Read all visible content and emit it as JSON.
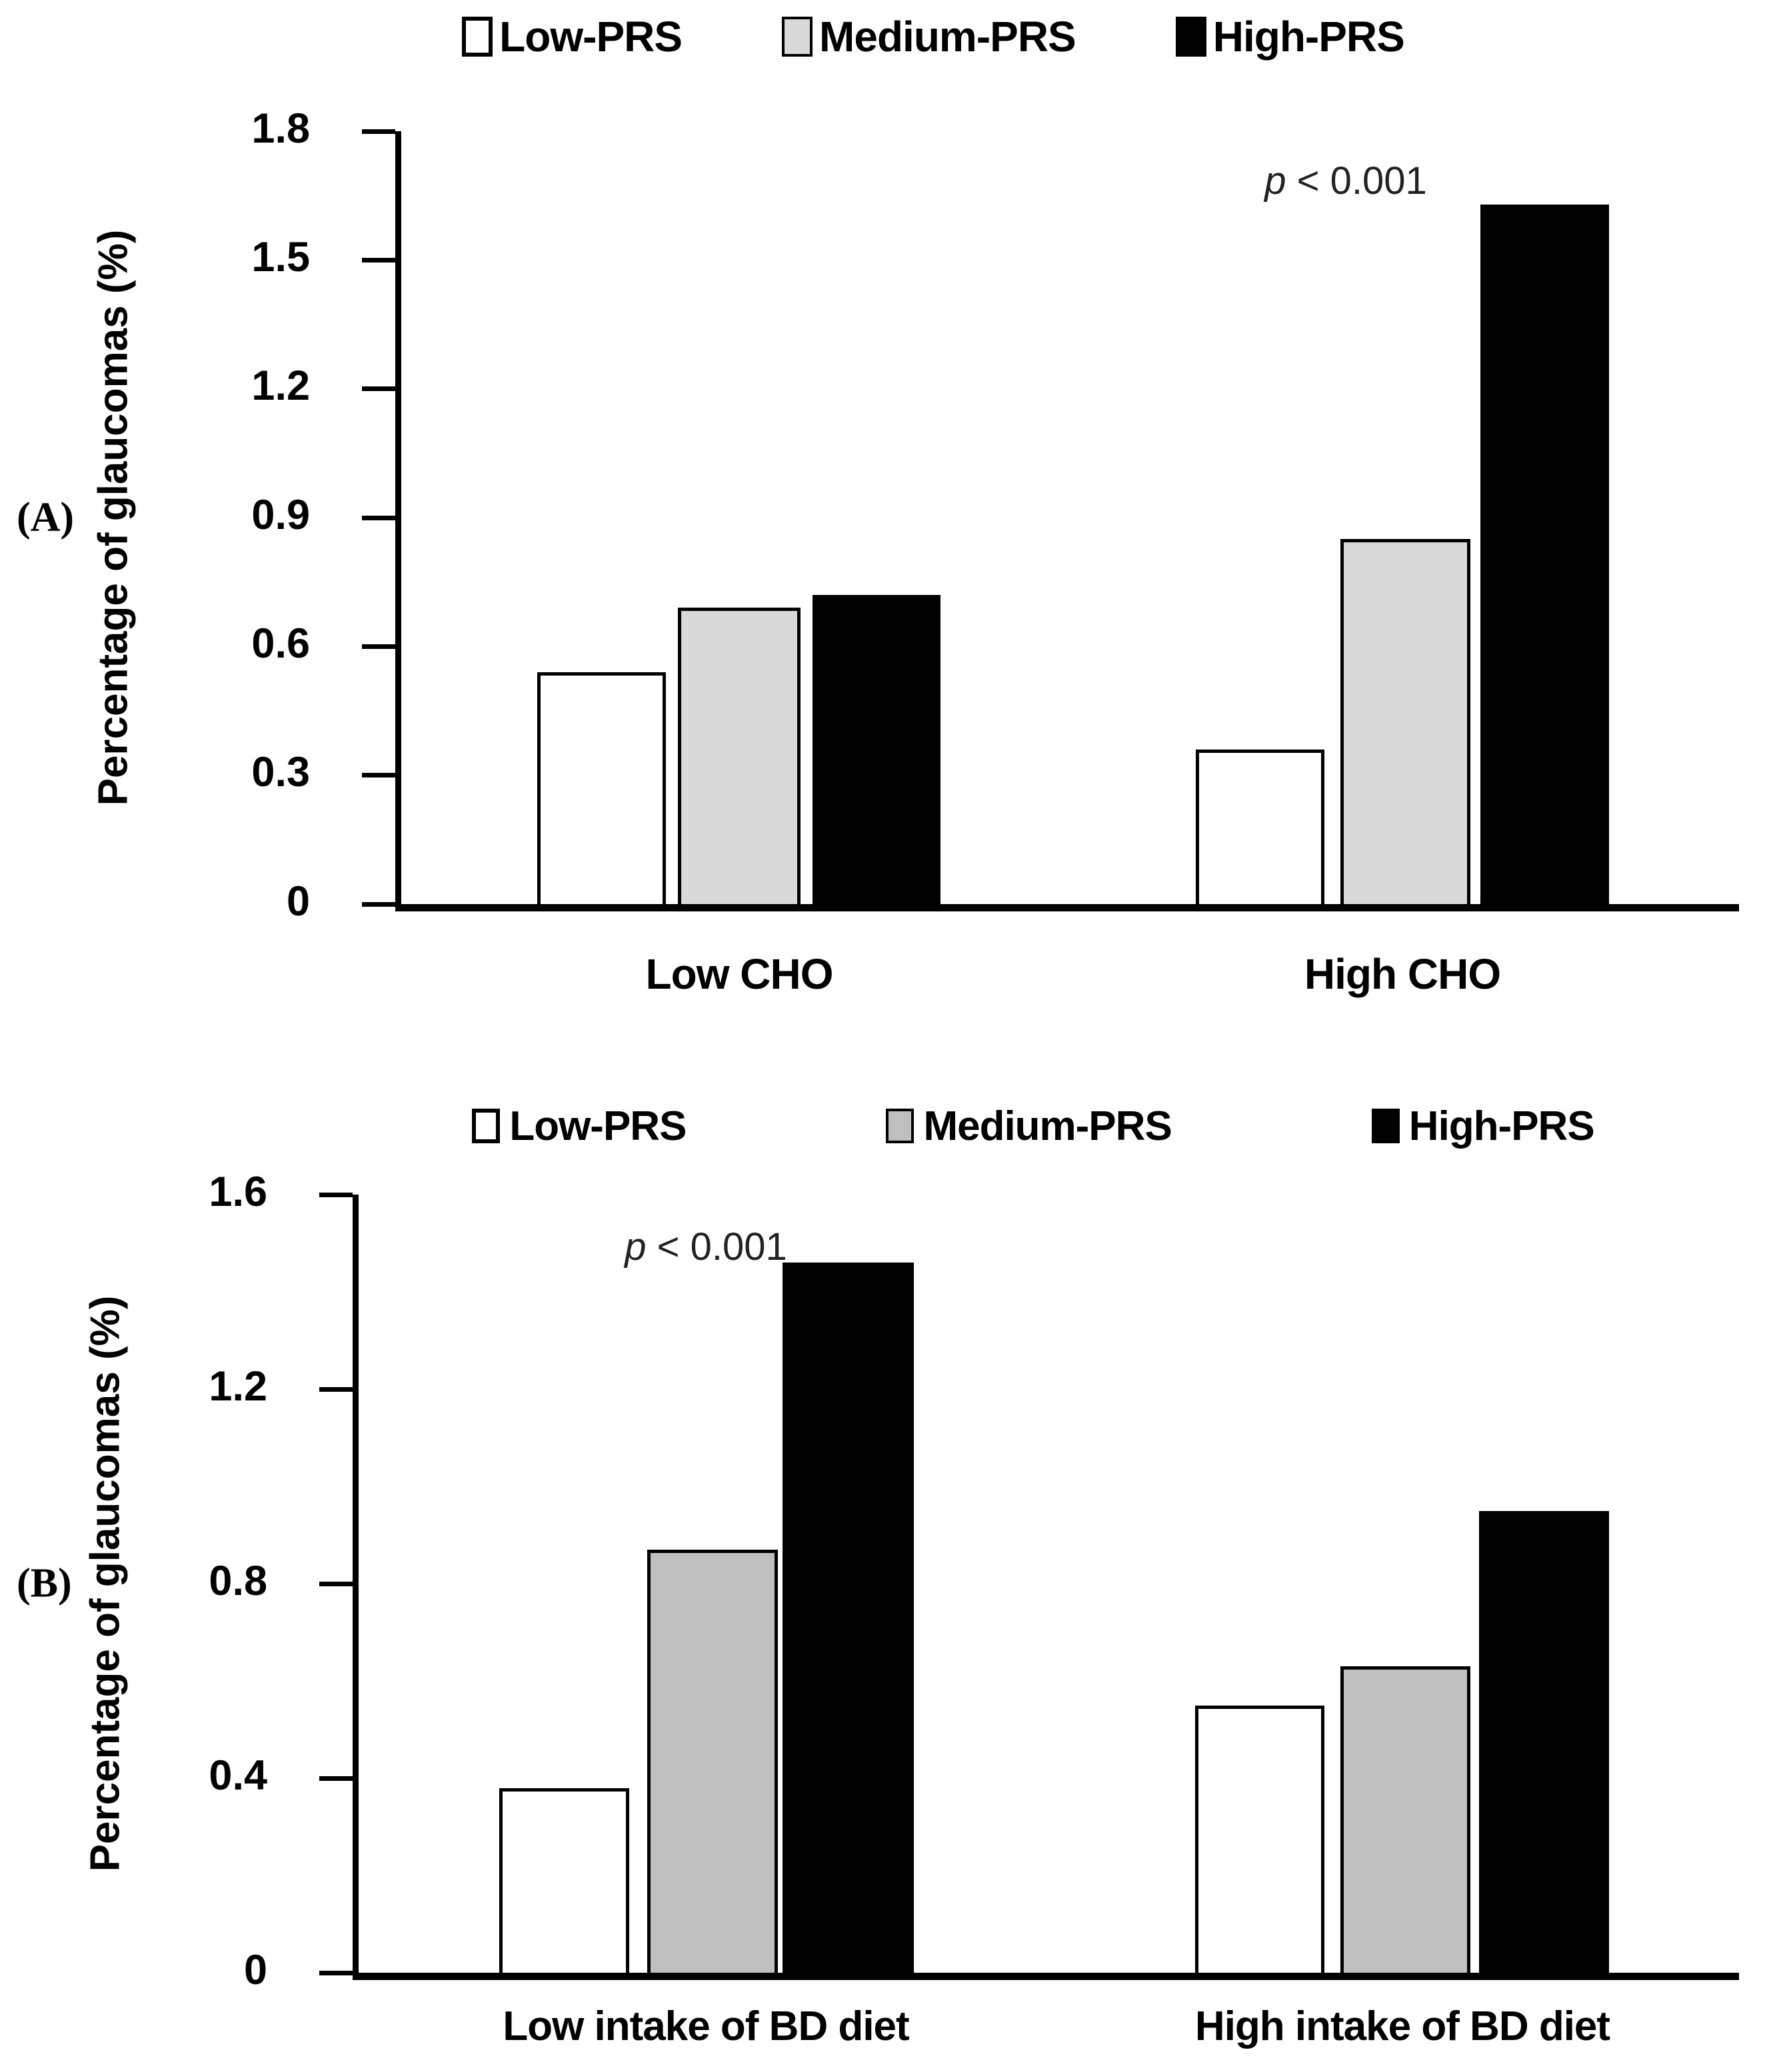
{
  "figure": {
    "description": "Two-panel grouped bar chart of glaucoma percentage by polygenic risk score (PRS) group and diet",
    "background": "#ffffff",
    "text_color": "#000000",
    "annotation_color": "#222222"
  },
  "chart_data": [
    {
      "type": "bar",
      "panel_label": "(A)",
      "categories": [
        "Low CHO",
        "High CHO"
      ],
      "series": [
        {
          "name": "Low-PRS",
          "fill": "#ffffff",
          "border": "#000000",
          "values": [
            0.54,
            0.36
          ]
        },
        {
          "name": "Medium-PRS",
          "fill": "#d9d9d9",
          "border": "#000000",
          "values": [
            0.69,
            0.85
          ]
        },
        {
          "name": "High-PRS",
          "fill": "#000000",
          "border": "#000000",
          "values": [
            0.72,
            1.63
          ]
        }
      ],
      "title": "",
      "xlabel": "",
      "ylabel": "Percentage of glaucomas (%)",
      "ylim": [
        0,
        1.8
      ],
      "yticks": [
        0,
        0.3,
        0.6,
        0.9,
        1.2,
        1.5,
        1.8
      ],
      "grid": false,
      "legend_position": "top",
      "annotation": {
        "italic_var": "p",
        "text": "< 0.001",
        "full_text": "p < 0.001",
        "at_category": "High CHO",
        "at_series": "High-PRS"
      }
    },
    {
      "type": "bar",
      "panel_label": "(B)",
      "categories": [
        "Low intake of BD diet",
        "High intake of BD diet"
      ],
      "series": [
        {
          "name": "Low-PRS",
          "fill": "#ffffff",
          "border": "#000000",
          "values": [
            0.38,
            0.55
          ]
        },
        {
          "name": "Medium-PRS",
          "fill": "#bfbfbf",
          "border": "#000000",
          "values": [
            0.87,
            0.63
          ]
        },
        {
          "name": "High-PRS",
          "fill": "#000000",
          "border": "#000000",
          "values": [
            1.46,
            0.95
          ]
        }
      ],
      "title": "",
      "xlabel": "",
      "ylabel": "Percentage of glaucomas (%)",
      "ylim": [
        0,
        1.6
      ],
      "yticks": [
        0,
        0.4,
        0.8,
        1.2,
        1.6
      ],
      "grid": false,
      "legend_position": "top",
      "annotation": {
        "italic_var": "p",
        "text": "< 0.001",
        "full_text": "p < 0.001",
        "at_category": "Low intake of BD diet",
        "at_series": "High-PRS"
      }
    }
  ]
}
